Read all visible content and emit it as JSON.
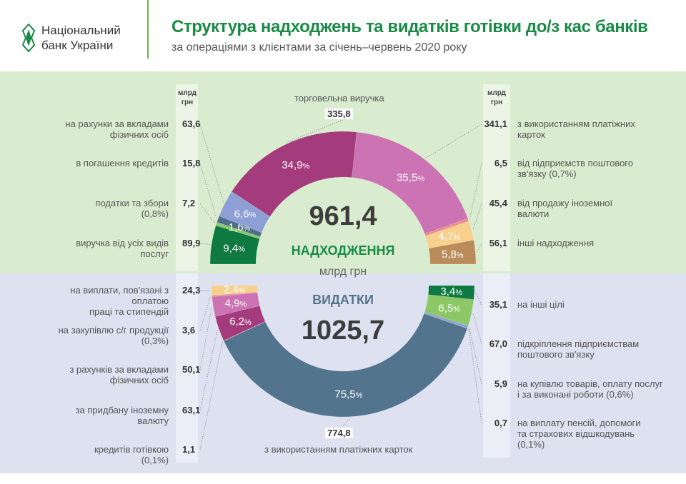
{
  "header": {
    "logo_line1": "Національний",
    "logo_line2": "банк України",
    "title": "Структура надходжень та видатків готівки до/з кас банків",
    "subtitle": "за операціями з клієнтами за січень–червень 2020 року"
  },
  "unit_label": "млрд\nгрн",
  "income_center": {
    "total": "961,4",
    "label": "НАДХОДЖЕННЯ",
    "unit": "млрд грн"
  },
  "expense_center": {
    "total": "1025,7",
    "label": "ВИДАТКИ"
  },
  "chart_data": [
    {
      "type": "pie",
      "title": "НАДХОДЖЕННЯ",
      "total": 961.4,
      "unit": "млрд грн",
      "layout": "half-donut-top",
      "segments": [
        {
          "label": "виручка від усіх видів\nпослуг",
          "value": "89,9",
          "pct": 9.4,
          "color": "#0e7a41",
          "show_pct": true
        },
        {
          "label": "податки та збори\n(0,8%)",
          "value": "7,2",
          "pct": 0.8,
          "color": "#8cc866",
          "show_pct": false
        },
        {
          "label": "в погашення кредитів",
          "value": "15,8",
          "pct": 1.6,
          "color": "#4e6f8a",
          "show_pct": true
        },
        {
          "label": "на рахунки за вкладами\nфізичних осіб",
          "value": "63,6",
          "pct": 6.6,
          "color": "#8d9fd4",
          "show_pct": true
        },
        {
          "label": "торговельна виручка",
          "value": "335,8",
          "pct": 34.9,
          "color": "#a33b7c",
          "show_pct": true
        },
        {
          "label": "з використанням платіжних\nкарток",
          "value": "341,1",
          "pct": 35.5,
          "color": "#cc73b3",
          "show_pct": true
        },
        {
          "label": "від підприємств поштового\nзв'язку (0,7%)",
          "value": "6,5",
          "pct": 0.7,
          "color": "#f08a8a",
          "show_pct": false
        },
        {
          "label": "від продажу іноземної\nвалюти",
          "value": "45,4",
          "pct": 4.7,
          "color": "#f6d08c",
          "show_pct": true
        },
        {
          "label": "інші надходження",
          "value": "56,1",
          "pct": 5.8,
          "color": "#b98c5a",
          "show_pct": true
        }
      ]
    },
    {
      "type": "pie",
      "title": "ВИДАТКИ",
      "total": 1025.7,
      "unit": "млрд грн",
      "layout": "half-donut-bottom",
      "segments": [
        {
          "label": "на виплати, пов'язані з оплатою\nпраці та стипендій",
          "value": "24,3",
          "pct": 2.4,
          "color": "#f6d08c",
          "show_pct": true
        },
        {
          "label": "на закупівлю с/г продукції\n(0,3%)",
          "value": "3,6",
          "pct": 0.3,
          "color": "#f08a8a",
          "show_pct": false
        },
        {
          "label": "з рахунків за вкладами\nфізичних осіб",
          "value": "50,1",
          "pct": 4.9,
          "color": "#cc73b3",
          "show_pct": true
        },
        {
          "label": "за придбану іноземну\nвалюту",
          "value": "63,1",
          "pct": 6.2,
          "color": "#a33b7c",
          "show_pct": true
        },
        {
          "label": "кредитів готівкою\n(0,1%)",
          "value": "1,1",
          "pct": 0.1,
          "color": "#b98c5a",
          "show_pct": false
        },
        {
          "label": "з використанням платіжних карток",
          "value": "774,8",
          "pct": 75.5,
          "color": "#52748c",
          "show_pct": true
        },
        {
          "label": "на виплату пенсій, допомоги\nта страхових відшкодувань\n(0,1%)",
          "value": "0,7",
          "pct": 0.1,
          "color": "#4e6f8a",
          "show_pct": false
        },
        {
          "label": "на купівлю товарів, оплату послуг\nі за виконані роботи (0,6%)",
          "value": "5,9",
          "pct": 0.6,
          "color": "#8d9fd4",
          "show_pct": false
        },
        {
          "label": "підкріплення підприємствам\nпоштового зв'язку",
          "value": "67,0",
          "pct": 6.5,
          "color": "#8cc866",
          "show_pct": true
        },
        {
          "label": "на інші цілі",
          "value": "35,1",
          "pct": 3.4,
          "color": "#0e7a41",
          "show_pct": true
        }
      ]
    }
  ]
}
